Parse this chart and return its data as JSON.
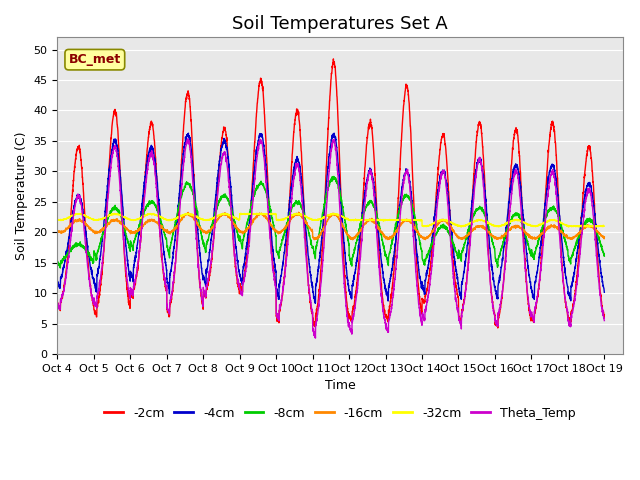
{
  "title": "Soil Temperatures Set A",
  "xlabel": "Time",
  "ylabel": "Soil Temperature (C)",
  "ylim": [
    0,
    52
  ],
  "xlim": [
    0,
    15.5
  ],
  "bg_color": "#e8e8e8",
  "legend_label": "BC_met",
  "series_colors": {
    "-2cm": "#ff0000",
    "-4cm": "#0000cc",
    "-8cm": "#00cc00",
    "-16cm": "#ff8800",
    "-32cm": "#ffff00",
    "Theta_Temp": "#cc00cc"
  },
  "tick_labels": [
    "Oct 4",
    "Oct 5",
    "Oct 6",
    "Oct 7",
    "Oct 8",
    "Oct 9",
    "Oct 10",
    "Oct 11",
    "Oct 12",
    "Oct 13",
    "Oct 14",
    "Oct 15",
    "Oct 16",
    "Oct 17",
    "Oct 18",
    "Oct 19"
  ],
  "n_days": 15,
  "pts_per_day": 240
}
